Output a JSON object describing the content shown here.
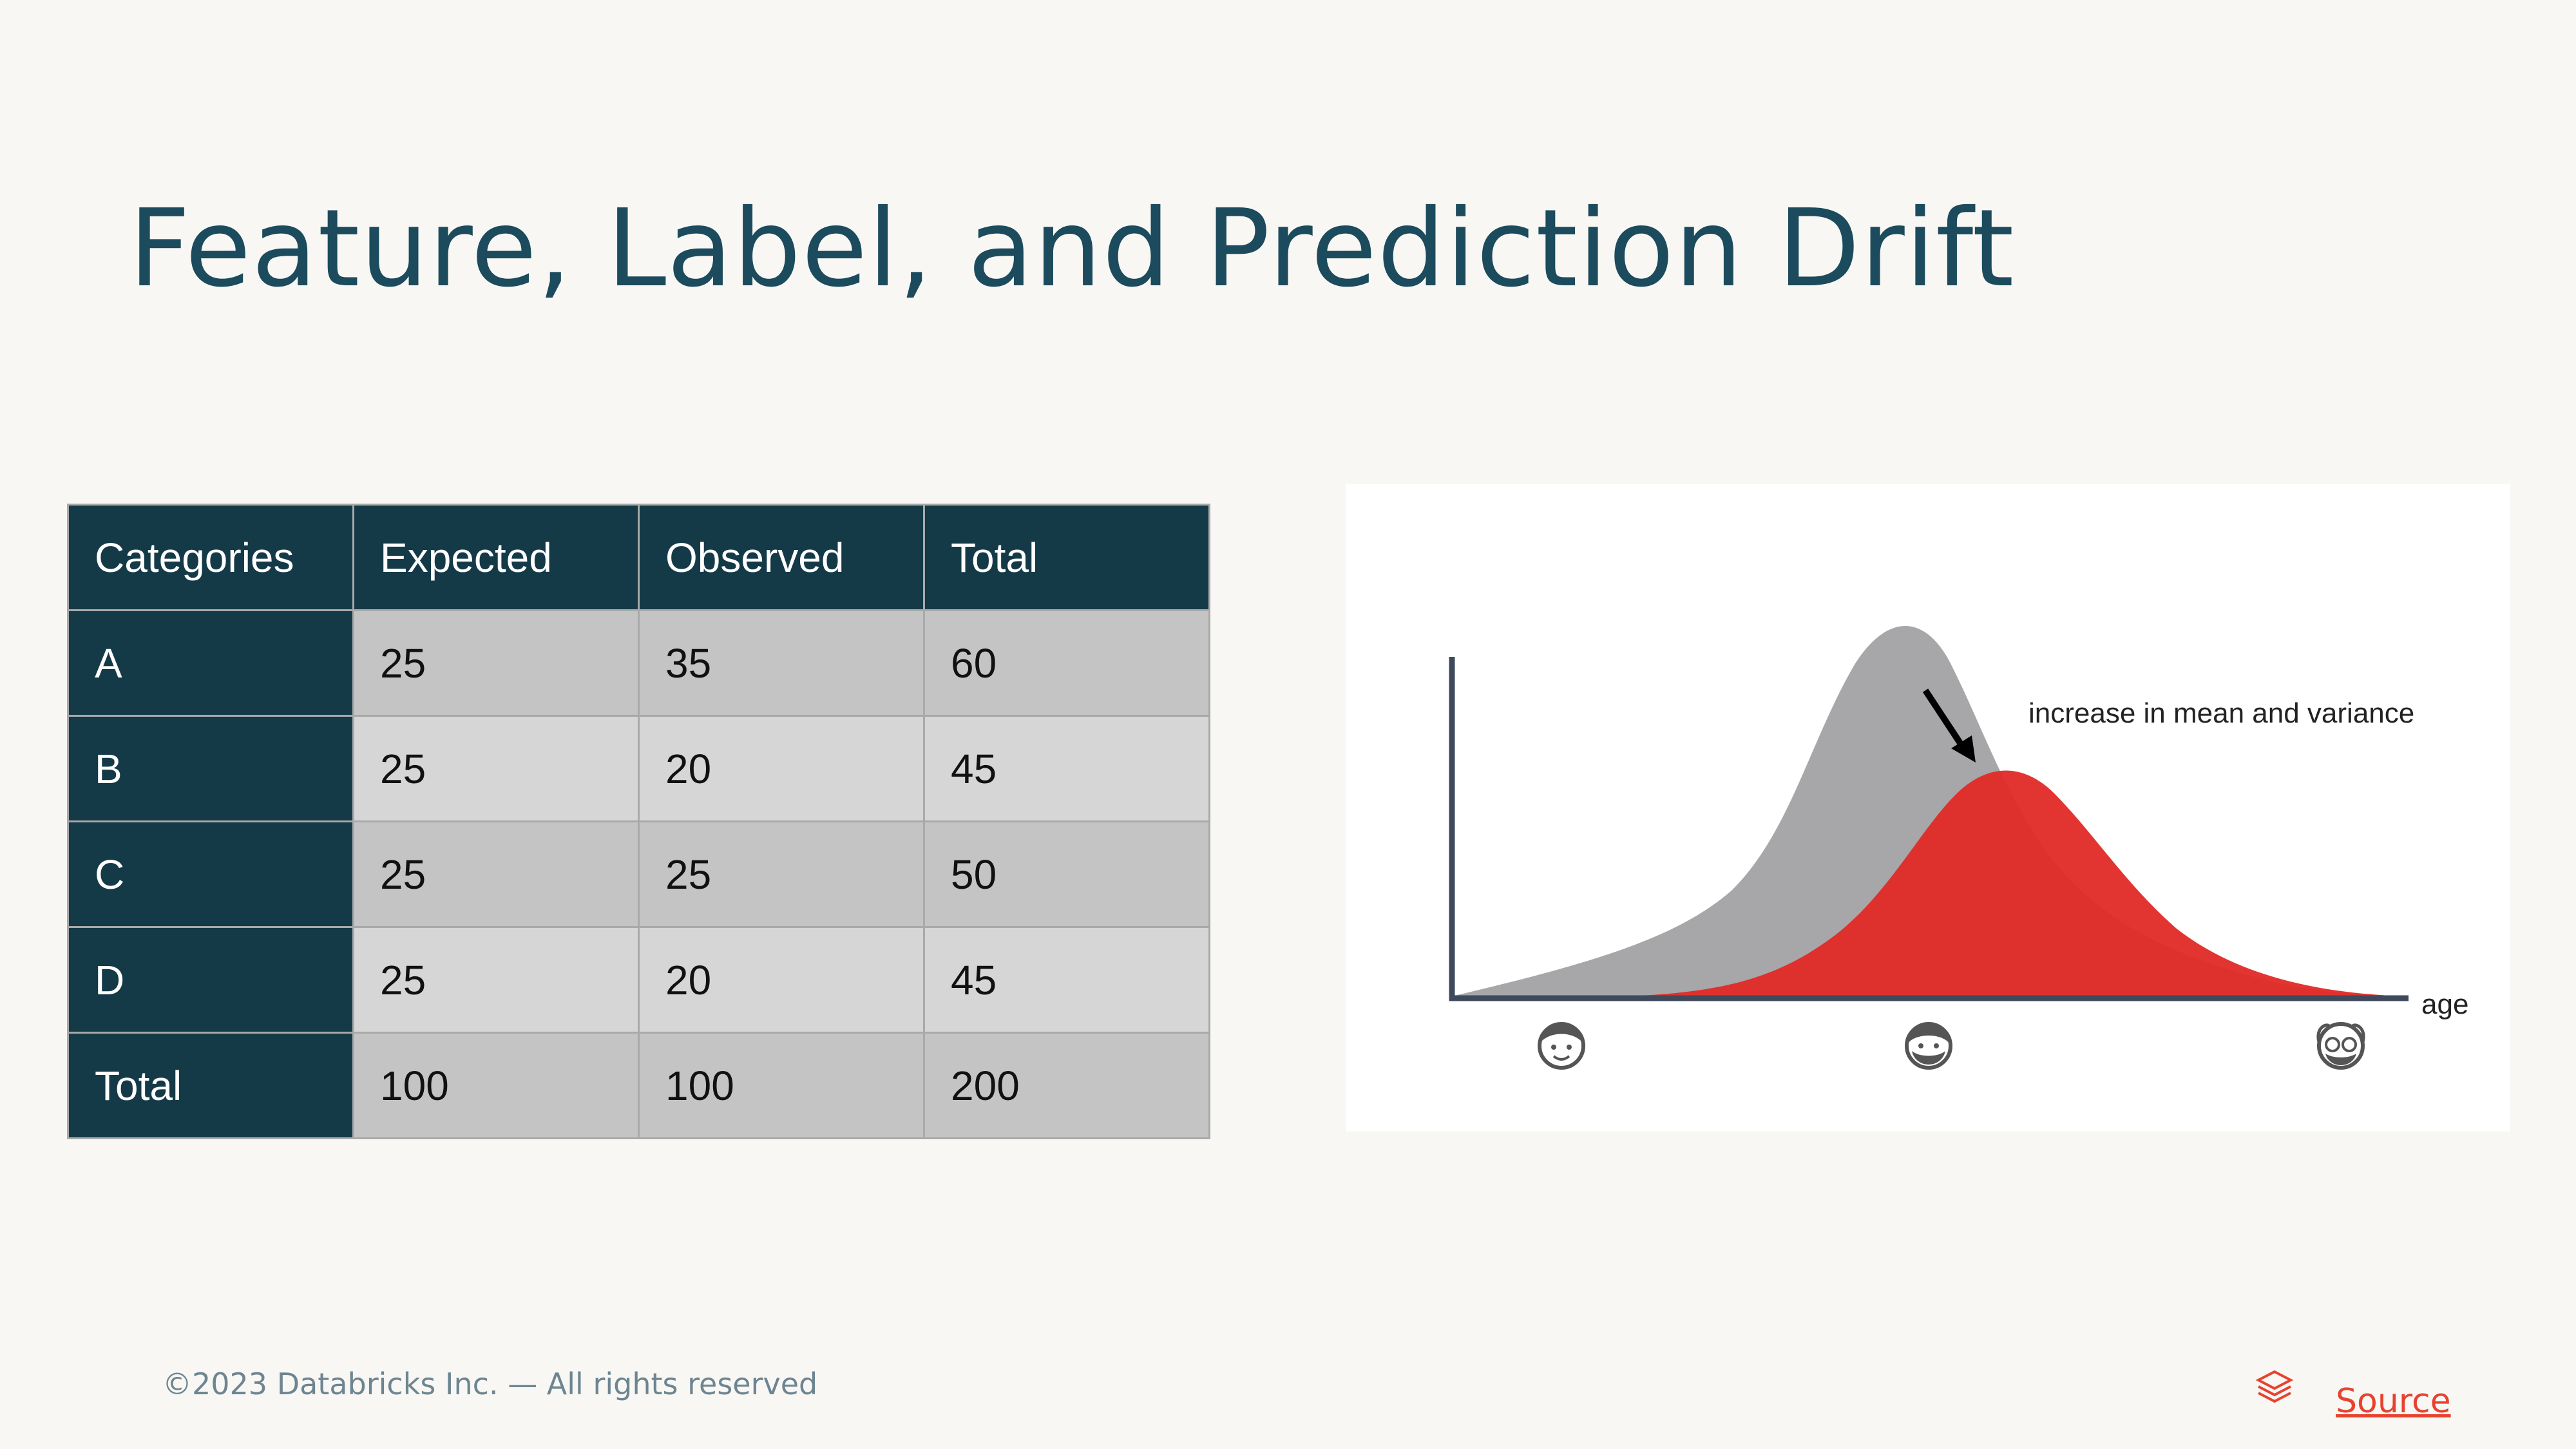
{
  "slide": {
    "title": "Feature, Label, and Prediction Drift"
  },
  "table": {
    "headers": [
      "Categories",
      "Expected",
      "Observed",
      "Total"
    ],
    "rows": [
      {
        "category": "A",
        "expected": "25",
        "observed": "35",
        "total": "60"
      },
      {
        "category": "B",
        "expected": "25",
        "observed": "20",
        "total": "45"
      },
      {
        "category": "C",
        "expected": "25",
        "observed": "25",
        "total": "50"
      },
      {
        "category": "D",
        "expected": "25",
        "observed": "20",
        "total": "45"
      },
      {
        "category": "Total",
        "expected": "100",
        "observed": "100",
        "total": "200"
      }
    ]
  },
  "chart": {
    "annotation": "increase in mean and variance",
    "axis_label": "age",
    "icons": [
      "child-face-icon",
      "adult-face-icon",
      "elderly-face-icon"
    ]
  },
  "colors": {
    "title": "#1b4b5c",
    "header_bg": "#143a48",
    "reference_dist": "#a7a7a9",
    "drifted_dist": "#e02a27",
    "source_link": "#e8422e"
  },
  "footer": {
    "copyright": "©2023 Databricks Inc. — All rights reserved",
    "source_label": "Source"
  }
}
